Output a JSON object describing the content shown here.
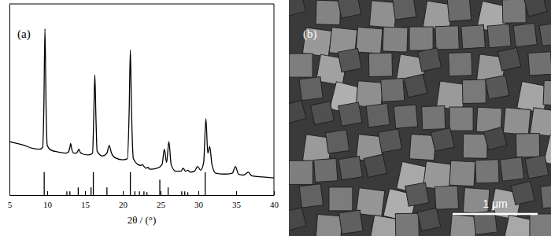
{
  "chart_data": {
    "type": "line",
    "title": "(a)",
    "x_label": "2θ / (°)",
    "xlim": [
      5,
      40
    ],
    "xticks": [
      5,
      10,
      15,
      20,
      25,
      30,
      35,
      40
    ],
    "ylim": [
      0,
      100
    ],
    "yticks": [],
    "tick_labels": "x",
    "grid": false,
    "series": [
      {
        "type": "line",
        "color": "#000000",
        "x": [
          5,
          6,
          7,
          8,
          9,
          9.4,
          9.55,
          9.7,
          9.85,
          10.0,
          10.5,
          11.5,
          12.5,
          12.8,
          13.0,
          13.1,
          13.25,
          13.5,
          13.9,
          14.1,
          14.2,
          14.35,
          14.7,
          15.5,
          16.0,
          16.15,
          16.3,
          16.45,
          16.6,
          17.3,
          17.9,
          18.2,
          18.5,
          19.0,
          20.0,
          20.6,
          20.85,
          21.0,
          21.15,
          21.4,
          22.0,
          22.4,
          22.6,
          22.8,
          23.1,
          23.3,
          23.6,
          24.5,
          25.2,
          25.5,
          25.8,
          26.1,
          26.4,
          27.0,
          27.7,
          28.0,
          28.3,
          28.6,
          28.9,
          29.5,
          29.9,
          30.3,
          30.7,
          31.0,
          31.25,
          31.5,
          31.8,
          32.3,
          33.5,
          34.5,
          34.9,
          35.3,
          36.0,
          36.6,
          37.1,
          38.5,
          40
        ],
        "values": [
          28,
          27,
          26,
          24.5,
          24,
          25,
          45,
          87,
          45,
          26,
          23.5,
          22.5,
          22,
          22.5,
          25,
          27,
          24,
          22,
          22,
          23.5,
          24,
          22.5,
          21.5,
          21,
          22,
          40,
          63,
          40,
          23,
          20.5,
          22,
          26,
          22,
          19.5,
          18.5,
          19,
          45,
          76,
          45,
          19,
          16,
          15.5,
          16,
          15,
          14,
          14.5,
          13.5,
          14,
          16,
          24,
          17,
          28,
          16,
          12.5,
          12.5,
          14,
          12.5,
          13,
          12,
          12.5,
          15,
          13,
          17,
          40,
          22,
          25.5,
          16,
          11.5,
          11,
          11.5,
          15,
          11,
          10.5,
          12,
          10,
          9.5,
          9
        ]
      },
      {
        "type": "stick",
        "color": "#000000",
        "x": [
          9.6,
          12.6,
          13.0,
          14.1,
          15.8,
          16.1,
          17.9,
          21.0,
          21.6,
          22.2,
          22.8,
          23.2,
          24.9,
          26.0,
          27.8,
          28.2,
          28.6,
          30.9
        ],
        "values": [
          12,
          2,
          2,
          4,
          4,
          12,
          4,
          12,
          2,
          2,
          2,
          1.5,
          8,
          4,
          2,
          2,
          1.5,
          12
        ]
      }
    ]
  },
  "image_panel": {
    "label": "(b)",
    "scale_bar": "1 μm"
  }
}
